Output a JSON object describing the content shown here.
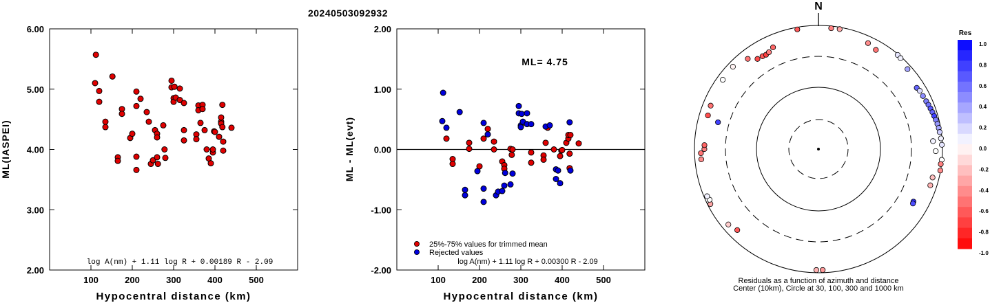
{
  "event_id": "20240503092932",
  "colors": {
    "red": "#e00000",
    "blue": "#0000dd",
    "axis": "#000000"
  },
  "chart_data": [
    {
      "type": "scatter",
      "ylabel": "ML(IASPEI)",
      "xlabel": "Hypocentral distance (km)",
      "xlim": [
        0,
        600
      ],
      "ylim": [
        2.0,
        6.0
      ],
      "xticks": [
        "100",
        "200",
        "300",
        "400",
        "500"
      ],
      "yticks": [
        "2.00",
        "3.00",
        "4.00",
        "5.00",
        "6.00"
      ],
      "formula": "log A(nm) + 1.11 log R + 0.00189 R - 2.09",
      "series": [
        {
          "color": "red",
          "points": [
            [
              112,
              5.57
            ],
            [
              110,
              5.1
            ],
            [
              120,
              4.97
            ],
            [
              120,
              4.79
            ],
            [
              135,
              4.46
            ],
            [
              135,
              4.37
            ],
            [
              152,
              5.21
            ],
            [
              165,
              3.87
            ],
            [
              165,
              3.81
            ],
            [
              175,
              4.67
            ],
            [
              175,
              4.59
            ],
            [
              195,
              4.19
            ],
            [
              200,
              4.26
            ],
            [
              210,
              4.96
            ],
            [
              210,
              4.72
            ],
            [
              210,
              3.88
            ],
            [
              210,
              3.66
            ],
            [
              220,
              4.84
            ],
            [
              235,
              4.62
            ],
            [
              240,
              4.46
            ],
            [
              245,
              3.76
            ],
            [
              250,
              3.82
            ],
            [
              255,
              4.32
            ],
            [
              260,
              4.26
            ],
            [
              260,
              4.2
            ],
            [
              260,
              3.87
            ],
            [
              262,
              3.76
            ],
            [
              275,
              4.4
            ],
            [
              278,
              4.0
            ],
            [
              280,
              3.86
            ],
            [
              295,
              5.14
            ],
            [
              295,
              5.03
            ],
            [
              300,
              4.85
            ],
            [
              300,
              4.79
            ],
            [
              302,
              5.04
            ],
            [
              305,
              4.86
            ],
            [
              315,
              5.01
            ],
            [
              315,
              4.82
            ],
            [
              325,
              4.77
            ],
            [
              325,
              4.32
            ],
            [
              325,
              4.15
            ],
            [
              355,
              4.25
            ],
            [
              355,
              4.17
            ],
            [
              360,
              4.73
            ],
            [
              360,
              4.65
            ],
            [
              365,
              4.44
            ],
            [
              370,
              4.74
            ],
            [
              370,
              4.67
            ],
            [
              375,
              4.32
            ],
            [
              380,
              4.0
            ],
            [
              385,
              3.85
            ],
            [
              390,
              3.77
            ],
            [
              395,
              3.95
            ],
            [
              395,
              4.0
            ],
            [
              398,
              4.3
            ],
            [
              400,
              4.29
            ],
            [
              410,
              4.21
            ],
            [
              415,
              4.46
            ],
            [
              415,
              4.43
            ],
            [
              415,
              4.53
            ],
            [
              418,
              4.74
            ],
            [
              418,
              4.37
            ],
            [
              420,
              4.13
            ],
            [
              420,
              3.98
            ],
            [
              440,
              4.36
            ]
          ]
        }
      ]
    },
    {
      "type": "scatter",
      "ylabel": "ML - ML(evt)",
      "xlabel": "Hypocentral distance (km)",
      "xlim": [
        0,
        600
      ],
      "ylim": [
        -2.0,
        2.0
      ],
      "xticks": [
        "100",
        "200",
        "300",
        "400",
        "500"
      ],
      "yticks": [
        "-2.00",
        "-1.00",
        "0.00",
        "1.00",
        "2.00"
      ],
      "ml_label": "ML= 4.75",
      "formula": "log A(nm) + 1.11 log R + 0.00300 R - 2.09",
      "series": [
        {
          "name": "25%-75% values for trimmed mean",
          "color": "red",
          "points": [
            [
              120,
              0.18
            ],
            [
              135,
              -0.16
            ],
            [
              135,
              -0.24
            ],
            [
              175,
              0.11
            ],
            [
              175,
              0.01
            ],
            [
              200,
              -0.28
            ],
            [
              210,
              0.18
            ],
            [
              220,
              0.34
            ],
            [
              235,
              0.13
            ],
            [
              235,
              0.0
            ],
            [
              255,
              -0.2
            ],
            [
              260,
              -0.26
            ],
            [
              260,
              -0.32
            ],
            [
              275,
              0.01
            ],
            [
              278,
              -0.09
            ],
            [
              280,
              0.0
            ],
            [
              325,
              -0.05
            ],
            [
              325,
              -0.22
            ],
            [
              355,
              -0.1
            ],
            [
              355,
              -0.17
            ],
            [
              360,
              0.11
            ],
            [
              365,
              0.36
            ],
            [
              380,
              0.0
            ],
            [
              395,
              -0.11
            ],
            [
              398,
              -0.02
            ],
            [
              400,
              -0.01
            ],
            [
              410,
              0.11
            ],
            [
              415,
              0.18
            ],
            [
              415,
              0.24
            ],
            [
              418,
              -0.07
            ],
            [
              418,
              -0.31
            ],
            [
              420,
              0.24
            ],
            [
              440,
              0.1
            ]
          ]
        },
        {
          "name": "Rejected values",
          "color": "blue",
          "points": [
            [
              112,
              0.94
            ],
            [
              110,
              0.47
            ],
            [
              120,
              0.36
            ],
            [
              152,
              0.62
            ],
            [
              165,
              -0.67
            ],
            [
              165,
              -0.76
            ],
            [
              195,
              -0.36
            ],
            [
              210,
              -0.65
            ],
            [
              210,
              -0.87
            ],
            [
              210,
              0.44
            ],
            [
              220,
              0.25
            ],
            [
              240,
              -0.76
            ],
            [
              245,
              -0.7
            ],
            [
              255,
              -0.69
            ],
            [
              260,
              -0.6
            ],
            [
              262,
              -0.39
            ],
            [
              275,
              -0.58
            ],
            [
              280,
              -0.4
            ],
            [
              295,
              0.72
            ],
            [
              295,
              0.6
            ],
            [
              300,
              0.4
            ],
            [
              300,
              0.37
            ],
            [
              302,
              0.59
            ],
            [
              305,
              0.46
            ],
            [
              315,
              0.6
            ],
            [
              315,
              0.42
            ],
            [
              325,
              0.42
            ],
            [
              360,
              0.38
            ],
            [
              370,
              0.4
            ],
            [
              385,
              -0.33
            ],
            [
              385,
              -0.49
            ],
            [
              390,
              -0.35
            ],
            [
              395,
              -0.56
            ],
            [
              418,
              0.45
            ],
            [
              420,
              -0.35
            ]
          ]
        }
      ]
    },
    {
      "type": "scatter",
      "north_label": "N",
      "caption_line1": "Residuals as a function of azimuth and distance",
      "caption_line2": "Center (10km), Circle at 30, 100, 300 and 1000 km",
      "colorbar": {
        "title": "Res",
        "labels": [
          "1.0",
          "0.8",
          "0.6",
          "0.4",
          "0.2",
          "0.0",
          "-0.2",
          "-0.4",
          "-0.6",
          "-0.8",
          "-1.0"
        ]
      },
      "points": [
        {
          "az": -38,
          "dist": 700,
          "res": -0.55
        },
        {
          "az": -34,
          "dist": 560,
          "res": -0.7
        },
        {
          "az": -31,
          "dist": 550,
          "res": -0.65
        },
        {
          "az": -29,
          "dist": 540,
          "res": -0.75
        },
        {
          "az": -27,
          "dist": 560,
          "res": -0.5
        },
        {
          "az": -24,
          "dist": 620,
          "res": -0.6
        },
        {
          "az": -10,
          "dist": 920,
          "res": -0.65
        },
        {
          "az": 6,
          "dist": 920,
          "res": -0.5
        },
        {
          "az": 10,
          "dist": 930,
          "res": -0.35
        },
        {
          "az": 25,
          "dist": 770,
          "res": -0.45
        },
        {
          "az": 30,
          "dist": 700,
          "res": -0.55
        },
        {
          "az": 40,
          "dist": 970,
          "res": 0.1
        },
        {
          "az": 42,
          "dist": 950,
          "res": 0.05
        },
        {
          "az": 48,
          "dist": 850,
          "res": 0.35
        },
        {
          "az": 58,
          "dist": 730,
          "res": 0.6
        },
        {
          "az": 60,
          "dist": 760,
          "res": 0.15
        },
        {
          "az": 63,
          "dist": 770,
          "res": 0.45
        },
        {
          "az": 66,
          "dist": 790,
          "res": 0.5
        },
        {
          "az": 68,
          "dist": 810,
          "res": 0.55
        },
        {
          "az": 70,
          "dist": 830,
          "res": 0.65
        },
        {
          "az": 72,
          "dist": 850,
          "res": 0.6
        },
        {
          "az": 74,
          "dist": 870,
          "res": 0.75
        },
        {
          "az": 76,
          "dist": 890,
          "res": 0.5
        },
        {
          "az": 78,
          "dist": 910,
          "res": 0.4
        },
        {
          "az": 80,
          "dist": 930,
          "res": 0.35
        },
        {
          "az": 82,
          "dist": 940,
          "res": 0.2
        },
        {
          "az": 85,
          "dist": 960,
          "res": 0.05
        },
        {
          "az": 86,
          "dist": 700,
          "res": 0.05
        },
        {
          "az": 88,
          "dist": 980,
          "res": 0.1
        },
        {
          "az": 91,
          "dist": 770,
          "res": 0.0
        },
        {
          "az": 95,
          "dist": 990,
          "res": 0.0
        },
        {
          "az": 97,
          "dist": 970,
          "res": -0.5
        },
        {
          "az": 100,
          "dist": 990,
          "res": -0.45
        },
        {
          "az": 104,
          "dist": 780,
          "res": -0.25
        },
        {
          "az": 108,
          "dist": 780,
          "res": -0.3
        },
        {
          "az": 119,
          "dist": 550,
          "res": 0.8
        },
        {
          "az": 120,
          "dist": 560,
          "res": 0.7
        },
        {
          "az": 178,
          "dist": 900,
          "res": -0.4
        },
        {
          "az": 181,
          "dist": 900,
          "res": -0.3
        },
        {
          "az": 225,
          "dist": 700,
          "res": -0.65
        },
        {
          "az": 230,
          "dist": 780,
          "res": -0.2
        },
        {
          "az": 243,
          "dist": 900,
          "res": -0.35
        },
        {
          "az": 245,
          "dist": 860,
          "res": 0.0
        },
        {
          "az": 247,
          "dist": 890,
          "res": 0.05
        },
        {
          "az": 265,
          "dist": 780,
          "res": -0.45
        },
        {
          "az": 268,
          "dist": 780,
          "res": -0.55
        },
        {
          "az": 270,
          "dist": 680,
          "res": -0.5
        },
        {
          "az": 272,
          "dist": 680,
          "res": -0.6
        },
        {
          "az": 285,
          "dist": 460,
          "res": 0.75
        },
        {
          "az": 287,
          "dist": 720,
          "res": -0.7
        },
        {
          "az": 292,
          "dist": 740,
          "res": -0.55
        },
        {
          "az": 306,
          "dist": 800,
          "res": 0.0
        },
        {
          "az": 314,
          "dist": 820,
          "res": -0.05
        }
      ]
    }
  ]
}
